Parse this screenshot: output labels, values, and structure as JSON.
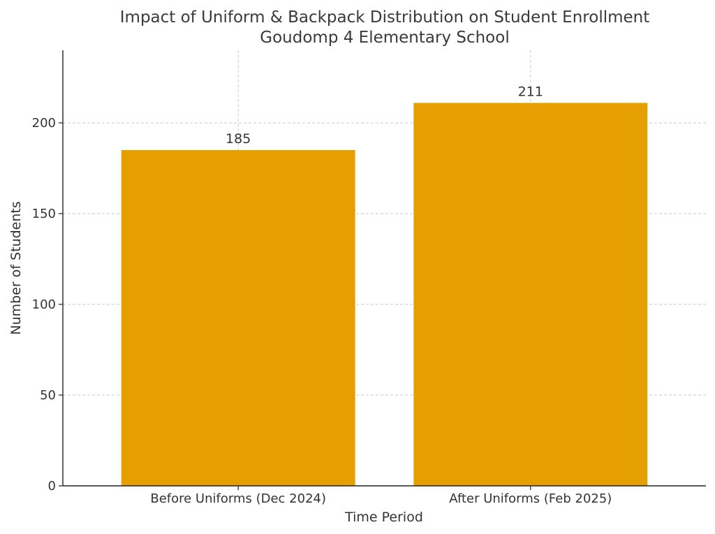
{
  "chart_data": {
    "type": "bar",
    "title": "Impact of Uniform & Backpack Distribution on Student Enrollment",
    "subtitle": "Goudomp 4 Elementary School",
    "xlabel": "Time Period",
    "ylabel": "Number of Students",
    "categories": [
      "Before Uniforms (Dec 2024)",
      "After Uniforms (Feb 2025)"
    ],
    "values": [
      185,
      211
    ],
    "data_labels": [
      "185",
      "211"
    ],
    "yticks": [
      0,
      50,
      100,
      150,
      200
    ],
    "ylim": [
      0,
      240
    ],
    "grid": true,
    "bar_color": "#E69F00"
  }
}
